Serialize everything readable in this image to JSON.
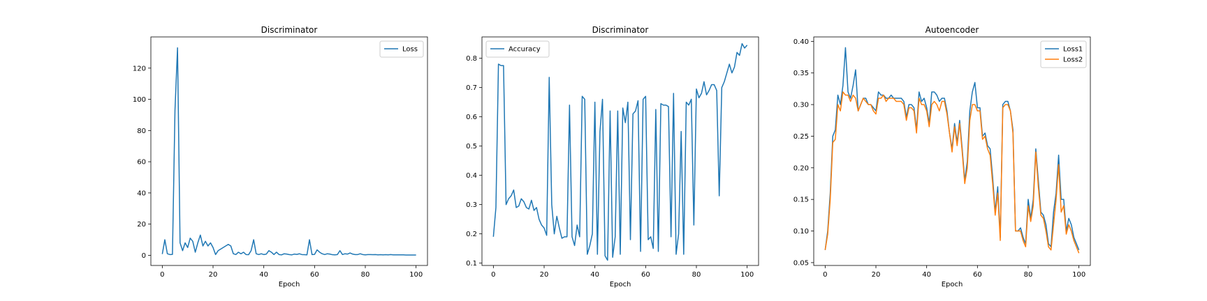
{
  "chart_data": [
    {
      "type": "line",
      "title": "Discriminator",
      "xlabel": "Epoch",
      "ylabel": "",
      "xlim": [
        -4.5,
        104.5
      ],
      "ylim": [
        -6.5,
        140
      ],
      "xticks": [
        0,
        20,
        40,
        60,
        80,
        100
      ],
      "yticks": [
        0,
        20,
        40,
        60,
        80,
        100,
        120
      ],
      "grid": false,
      "legend": "top-right",
      "series": [
        {
          "name": "Loss",
          "color": "#1f77b4",
          "x": [
            0,
            1,
            2,
            3,
            4,
            5,
            6,
            7,
            8,
            9,
            10,
            11,
            12,
            13,
            14,
            15,
            16,
            17,
            18,
            19,
            20,
            21,
            22,
            23,
            24,
            25,
            26,
            27,
            28,
            29,
            30,
            31,
            32,
            33,
            34,
            35,
            36,
            37,
            38,
            39,
            40,
            41,
            42,
            43,
            44,
            45,
            46,
            47,
            48,
            49,
            50,
            51,
            52,
            53,
            54,
            55,
            56,
            57,
            58,
            59,
            60,
            61,
            62,
            63,
            64,
            65,
            66,
            67,
            68,
            69,
            70,
            71,
            72,
            73,
            74,
            75,
            76,
            77,
            78,
            79,
            80,
            81,
            82,
            83,
            84,
            85,
            86,
            87,
            88,
            89,
            90,
            91,
            92,
            93,
            94,
            95,
            96,
            97,
            98,
            99,
            100
          ],
          "values": [
            0.8,
            10,
            1,
            0.5,
            0.6,
            93,
            133,
            8,
            3,
            8,
            5,
            11,
            9,
            2,
            8,
            13,
            6,
            9,
            6,
            8,
            5,
            0.5,
            3,
            4,
            5,
            6,
            7,
            6,
            1,
            0.5,
            2,
            1,
            2,
            0.5,
            0.4,
            3,
            10,
            1,
            0.5,
            1,
            0.5,
            0.8,
            3,
            2,
            0.5,
            2,
            0.5,
            0.3,
            1,
            0.8,
            0.5,
            0.3,
            0.8,
            0.6,
            1,
            0.5,
            0.4,
            0.3,
            10,
            0.5,
            0.6,
            3.5,
            2,
            1,
            0.5,
            1,
            0.8,
            0.4,
            0.3,
            0.5,
            3,
            0.5,
            1,
            0.8,
            1.5,
            0.8,
            0.5,
            0.5,
            1,
            0.5,
            0.3,
            0.5,
            0.5,
            0.4,
            0.5,
            0.3,
            0.4,
            0.3,
            0.4,
            0.3,
            0.5,
            0.3,
            0.3,
            0.3,
            0.3,
            0.3,
            0.2,
            0.2,
            0.2,
            0.2,
            0.2
          ]
        }
      ]
    },
    {
      "type": "line",
      "title": "Discriminator",
      "xlabel": "Epoch",
      "ylabel": "",
      "xlim": [
        -4.5,
        104.5
      ],
      "ylim": [
        0.092,
        0.873
      ],
      "xticks": [
        0,
        20,
        40,
        60,
        80,
        100
      ],
      "yticks": [
        0.1,
        0.2,
        0.3,
        0.4,
        0.5,
        0.6,
        0.7,
        0.8
      ],
      "grid": false,
      "legend": "top-left",
      "series": [
        {
          "name": "Accuracy",
          "color": "#1f77b4",
          "x": [
            0,
            1,
            2,
            3,
            4,
            5,
            6,
            7,
            8,
            9,
            10,
            11,
            12,
            13,
            14,
            15,
            16,
            17,
            18,
            19,
            20,
            21,
            22,
            23,
            24,
            25,
            26,
            27,
            28,
            29,
            30,
            31,
            32,
            33,
            34,
            35,
            36,
            37,
            38,
            39,
            40,
            41,
            42,
            43,
            44,
            45,
            46,
            47,
            48,
            49,
            50,
            51,
            52,
            53,
            54,
            55,
            56,
            57,
            58,
            59,
            60,
            61,
            62,
            63,
            64,
            65,
            66,
            67,
            68,
            69,
            70,
            71,
            72,
            73,
            74,
            75,
            76,
            77,
            78,
            79,
            80,
            81,
            82,
            83,
            84,
            85,
            86,
            87,
            88,
            89,
            90,
            91,
            92,
            93,
            94,
            95,
            96,
            97,
            98,
            99,
            100
          ],
          "values": [
            0.19,
            0.29,
            0.78,
            0.775,
            0.775,
            0.3,
            0.32,
            0.33,
            0.35,
            0.29,
            0.295,
            0.32,
            0.31,
            0.29,
            0.285,
            0.315,
            0.28,
            0.29,
            0.25,
            0.23,
            0.22,
            0.195,
            0.735,
            0.3,
            0.2,
            0.26,
            0.22,
            0.185,
            0.19,
            0.19,
            0.64,
            0.19,
            0.16,
            0.23,
            0.19,
            0.67,
            0.66,
            0.13,
            0.16,
            0.2,
            0.65,
            0.13,
            0.55,
            0.66,
            0.125,
            0.11,
            0.62,
            0.12,
            0.19,
            0.62,
            0.13,
            0.63,
            0.58,
            0.65,
            0.18,
            0.61,
            0.62,
            0.655,
            0.14,
            0.66,
            0.67,
            0.18,
            0.19,
            0.15,
            0.625,
            0.14,
            0.645,
            0.64,
            0.64,
            0.635,
            0.19,
            0.68,
            0.13,
            0.2,
            0.55,
            0.13,
            0.65,
            0.64,
            0.66,
            0.23,
            0.695,
            0.665,
            0.68,
            0.72,
            0.675,
            0.69,
            0.71,
            0.71,
            0.69,
            0.33,
            0.7,
            0.72,
            0.75,
            0.78,
            0.75,
            0.77,
            0.82,
            0.81,
            0.85,
            0.835,
            0.845
          ]
        }
      ]
    },
    {
      "type": "line",
      "title": "Autoencoder",
      "xlabel": "Epoch",
      "ylabel": "",
      "xlim": [
        -4.5,
        104.5
      ],
      "ylim": [
        0.0455,
        0.407
      ],
      "xticks": [
        0,
        20,
        40,
        60,
        80,
        100
      ],
      "yticks": [
        0.05,
        0.1,
        0.15,
        0.2,
        0.25,
        0.3,
        0.35,
        0.4
      ],
      "grid": false,
      "legend": "top-right",
      "series": [
        {
          "name": "Loss1",
          "color": "#1f77b4",
          "x": [
            0,
            1,
            2,
            3,
            4,
            5,
            6,
            7,
            8,
            9,
            10,
            11,
            12,
            13,
            14,
            15,
            16,
            17,
            18,
            19,
            20,
            21,
            22,
            23,
            24,
            25,
            26,
            27,
            28,
            29,
            30,
            31,
            32,
            33,
            34,
            35,
            36,
            37,
            38,
            39,
            40,
            41,
            42,
            43,
            44,
            45,
            46,
            47,
            48,
            49,
            50,
            51,
            52,
            53,
            54,
            55,
            56,
            57,
            58,
            59,
            60,
            61,
            62,
            63,
            64,
            65,
            66,
            67,
            68,
            69,
            70,
            71,
            72,
            73,
            74,
            75,
            76,
            77,
            78,
            79,
            80,
            81,
            82,
            83,
            84,
            85,
            86,
            87,
            88,
            89,
            90,
            91,
            92,
            93,
            94,
            95,
            96,
            97,
            98,
            99,
            100
          ],
          "values": [
            0.07,
            0.1,
            0.16,
            0.25,
            0.26,
            0.315,
            0.3,
            0.33,
            0.39,
            0.32,
            0.31,
            0.33,
            0.355,
            0.29,
            0.3,
            0.31,
            0.31,
            0.3,
            0.3,
            0.295,
            0.29,
            0.32,
            0.315,
            0.315,
            0.31,
            0.31,
            0.315,
            0.31,
            0.31,
            0.31,
            0.31,
            0.305,
            0.28,
            0.3,
            0.3,
            0.295,
            0.26,
            0.32,
            0.305,
            0.31,
            0.295,
            0.27,
            0.32,
            0.32,
            0.315,
            0.305,
            0.31,
            0.31,
            0.29,
            0.255,
            0.23,
            0.27,
            0.24,
            0.275,
            0.23,
            0.18,
            0.21,
            0.29,
            0.32,
            0.335,
            0.295,
            0.295,
            0.25,
            0.255,
            0.235,
            0.23,
            0.185,
            0.13,
            0.17,
            0.09,
            0.3,
            0.305,
            0.305,
            0.29,
            0.26,
            0.1,
            0.1,
            0.105,
            0.09,
            0.08,
            0.15,
            0.12,
            0.15,
            0.23,
            0.18,
            0.13,
            0.125,
            0.11,
            0.08,
            0.075,
            0.13,
            0.16,
            0.22,
            0.15,
            0.15,
            0.1,
            0.12,
            0.11,
            0.09,
            0.08,
            0.07
          ]
        },
        {
          "name": "Loss2",
          "color": "#ff7f0e",
          "x": [
            0,
            1,
            2,
            3,
            4,
            5,
            6,
            7,
            8,
            9,
            10,
            11,
            12,
            13,
            14,
            15,
            16,
            17,
            18,
            19,
            20,
            21,
            22,
            23,
            24,
            25,
            26,
            27,
            28,
            29,
            30,
            31,
            32,
            33,
            34,
            35,
            36,
            37,
            38,
            39,
            40,
            41,
            42,
            43,
            44,
            45,
            46,
            47,
            48,
            49,
            50,
            51,
            52,
            53,
            54,
            55,
            56,
            57,
            58,
            59,
            60,
            61,
            62,
            63,
            64,
            65,
            66,
            67,
            68,
            69,
            70,
            71,
            72,
            73,
            74,
            75,
            76,
            77,
            78,
            79,
            80,
            81,
            82,
            83,
            84,
            85,
            86,
            87,
            88,
            89,
            90,
            91,
            92,
            93,
            94,
            95,
            96,
            97,
            98,
            99,
            100
          ],
          "values": [
            0.07,
            0.095,
            0.15,
            0.24,
            0.245,
            0.3,
            0.29,
            0.32,
            0.315,
            0.315,
            0.305,
            0.315,
            0.31,
            0.29,
            0.3,
            0.31,
            0.305,
            0.3,
            0.3,
            0.29,
            0.285,
            0.31,
            0.31,
            0.315,
            0.305,
            0.31,
            0.31,
            0.31,
            0.305,
            0.305,
            0.305,
            0.3,
            0.275,
            0.295,
            0.295,
            0.29,
            0.255,
            0.31,
            0.3,
            0.3,
            0.29,
            0.265,
            0.3,
            0.305,
            0.3,
            0.29,
            0.305,
            0.305,
            0.285,
            0.255,
            0.225,
            0.265,
            0.235,
            0.27,
            0.225,
            0.175,
            0.2,
            0.275,
            0.3,
            0.3,
            0.29,
            0.29,
            0.245,
            0.25,
            0.23,
            0.22,
            0.175,
            0.125,
            0.16,
            0.085,
            0.295,
            0.3,
            0.3,
            0.29,
            0.255,
            0.1,
            0.1,
            0.1,
            0.085,
            0.075,
            0.14,
            0.115,
            0.14,
            0.225,
            0.17,
            0.125,
            0.12,
            0.1,
            0.075,
            0.07,
            0.11,
            0.15,
            0.205,
            0.13,
            0.14,
            0.095,
            0.11,
            0.1,
            0.085,
            0.075,
            0.065
          ]
        }
      ]
    }
  ]
}
